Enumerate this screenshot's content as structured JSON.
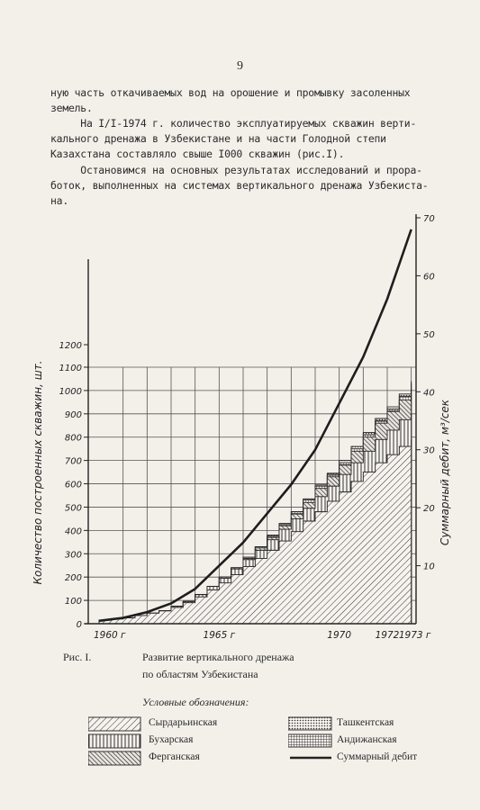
{
  "page_number": "9",
  "paragraphs": [
    "ную часть откачиваемых вод на орошение и промывку засоленных\nземель.",
    "     На I/I-1974 г. количество эксплуатируемых скважин верти-\nкального дренажа в Узбекистане и на части Голодной степи\nКазахстана составляло свыше I000 скважин (рис.I).",
    "     Остановимся на основных результатах исследований и прора-\nботок, выполненных на системах вертикального дренажа Узбекиста-\nна."
  ],
  "figure": {
    "label": "Рис. I.",
    "caption_line1": "Развитие вертикального дренажа",
    "caption_line2": "по областям Узбекистана"
  },
  "legend": {
    "title": "Условные обозначения:",
    "items": [
      {
        "key": "syrdarya",
        "label": "Сырдарьинская",
        "pattern": "diag-right"
      },
      {
        "key": "tashkent",
        "label": "Ташкентская",
        "pattern": "dots"
      },
      {
        "key": "bukhara",
        "label": "Бухарская",
        "pattern": "vertical"
      },
      {
        "key": "andijan",
        "label": "Андижанская",
        "pattern": "grid"
      },
      {
        "key": "fergana",
        "label": "Ферганская",
        "pattern": "diag-left"
      },
      {
        "key": "total",
        "label": "Суммарный дебит",
        "pattern": "line"
      }
    ]
  },
  "chart_data": {
    "type": "area",
    "xlabel": "",
    "ylabel_left": "Количество построенных скважин, шт.",
    "ylabel_right": "Суммарный дебит, м³/сек",
    "x_tick_labels": [
      "1960 г",
      "1965 г",
      "1970",
      "1972",
      "1973 г"
    ],
    "y_left_ticks": [
      "0",
      "100",
      "200",
      "300",
      "400",
      "500",
      "600",
      "700",
      "800",
      "900",
      "1000",
      "1100",
      "1200"
    ],
    "y_right_ticks": [
      "10",
      "20",
      "30",
      "40",
      "50",
      "60",
      "70"
    ],
    "ylim_left": [
      0,
      1200
    ],
    "ylim_right": [
      0,
      70
    ],
    "x": [
      1960,
      1960.5,
      1961,
      1961.5,
      1962,
      1962.5,
      1963,
      1963.5,
      1964,
      1964.5,
      1965,
      1965.5,
      1966,
      1966.5,
      1967,
      1967.5,
      1968,
      1968.5,
      1969,
      1969.5,
      1970,
      1970.5,
      1971,
      1971.5,
      1972,
      1972.5,
      1973
    ],
    "series": [
      {
        "name": "Сырдарьинская",
        "values": [
          15,
          20,
          25,
          35,
          45,
          55,
          70,
          90,
          115,
          145,
          175,
          210,
          245,
          280,
          315,
          355,
          395,
          440,
          480,
          525,
          565,
          610,
          650,
          690,
          725,
          760,
          790
        ]
      },
      {
        "name": "Бухарская",
        "values": [
          15,
          20,
          25,
          35,
          45,
          55,
          75,
          95,
          125,
          160,
          195,
          235,
          275,
          315,
          360,
          405,
          450,
          495,
          545,
          590,
          640,
          690,
          740,
          790,
          830,
          875,
          900
        ]
      },
      {
        "name": "Ферганская",
        "values": [
          15,
          20,
          25,
          35,
          45,
          55,
          75,
          95,
          125,
          160,
          200,
          240,
          280,
          325,
          370,
          420,
          470,
          520,
          580,
          630,
          680,
          740,
          800,
          860,
          910,
          960,
          1010
        ]
      },
      {
        "name": "Андижанская",
        "values": [
          15,
          20,
          25,
          35,
          45,
          55,
          75,
          95,
          125,
          160,
          200,
          240,
          285,
          330,
          375,
          425,
          480,
          530,
          590,
          640,
          690,
          750,
          810,
          870,
          920,
          975,
          1030
        ]
      },
      {
        "name": "Ташкентская",
        "values": [
          15,
          20,
          25,
          35,
          45,
          55,
          75,
          95,
          125,
          160,
          200,
          240,
          285,
          330,
          380,
          430,
          480,
          535,
          595,
          645,
          700,
          760,
          820,
          880,
          930,
          985,
          1040
        ]
      }
    ],
    "total_debit": {
      "name": "Суммарный дебит",
      "x": [
        1960,
        1961,
        1962,
        1963,
        1964,
        1965,
        1966,
        1967,
        1968,
        1969,
        1970,
        1971,
        1972,
        1973
      ],
      "values": [
        0.5,
        1,
        2,
        3.5,
        6,
        10,
        14,
        19,
        24,
        30,
        38,
        46,
        56,
        68
      ]
    }
  }
}
